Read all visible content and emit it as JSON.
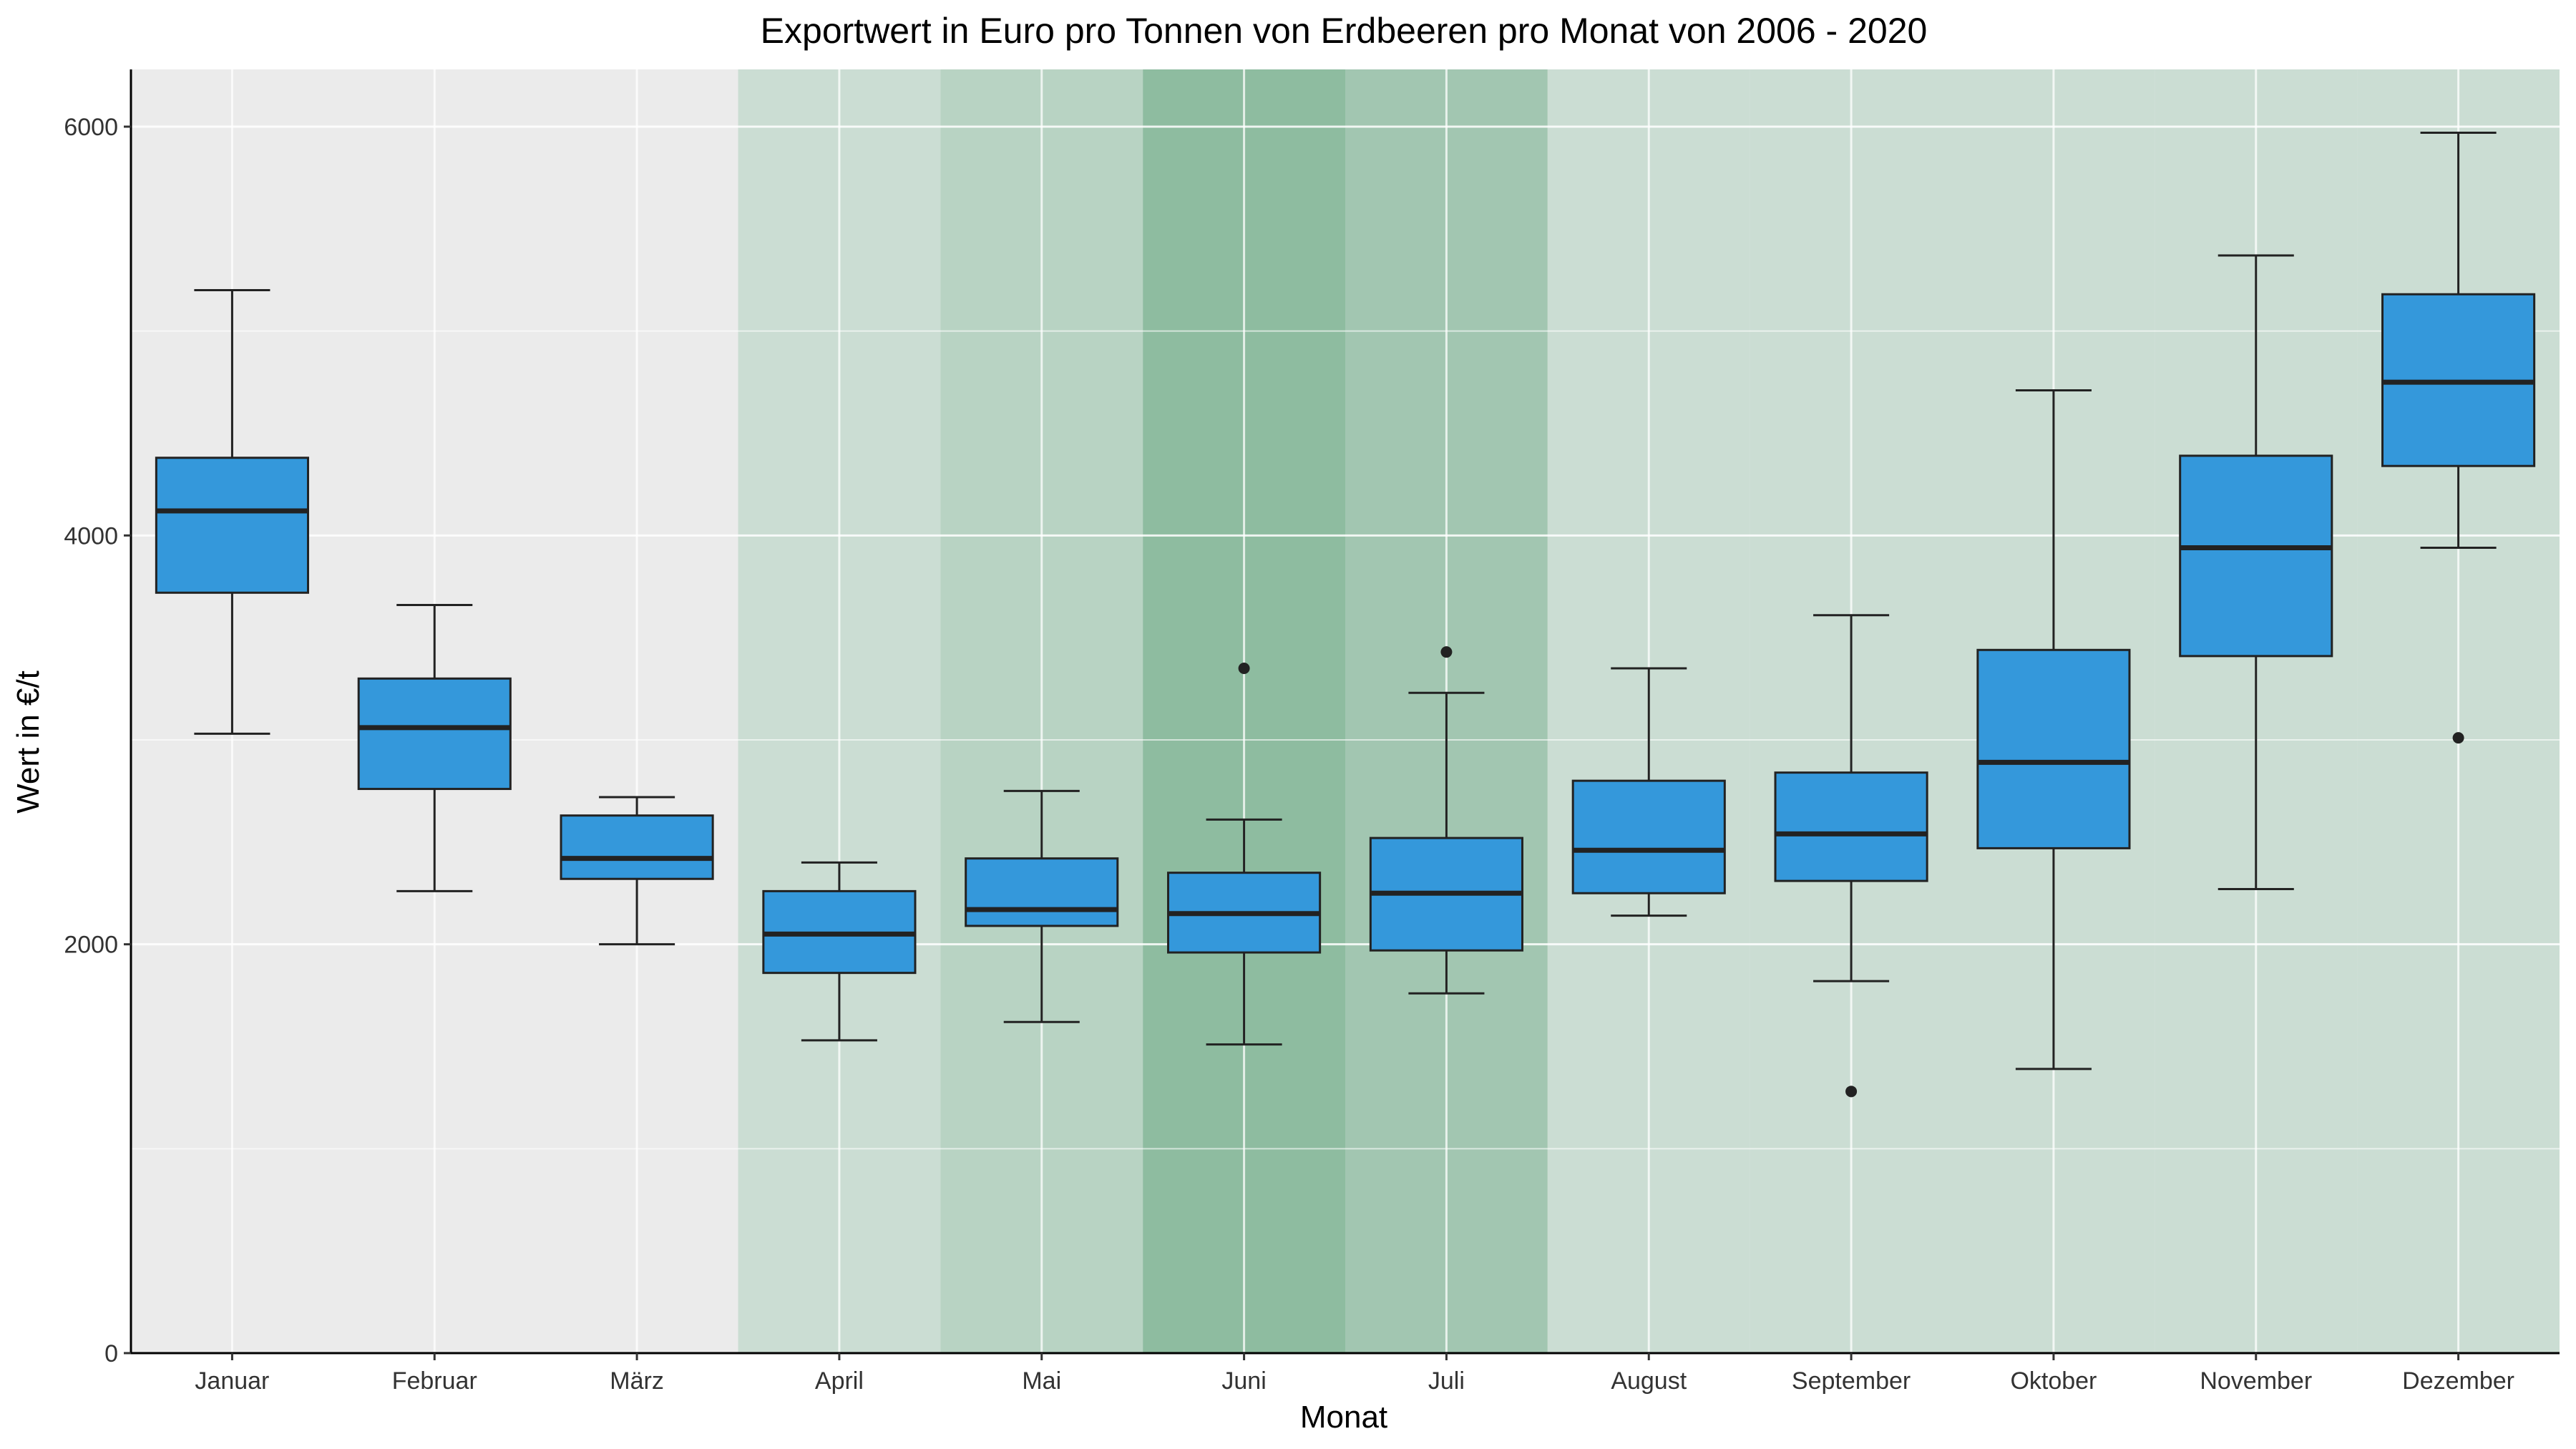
{
  "chart_data": {
    "type": "boxplot",
    "title": "Exportwert in Euro pro Tonnen von Erdbeeren pro Monat von 2006 - 2020",
    "xlabel": "Monat",
    "ylabel": "Wert in €/t",
    "ylim": [
      0,
      6280
    ],
    "yticks": [
      0,
      2000,
      4000,
      6000
    ],
    "categories": [
      "Januar",
      "Februar",
      "März",
      "April",
      "Mai",
      "Juni",
      "Juli",
      "August",
      "September",
      "Oktober",
      "November",
      "Dezember"
    ],
    "boxes": [
      {
        "category": "Januar",
        "whisker_low": 3030,
        "q1": 3720,
        "median": 4120,
        "q3": 4380,
        "whisker_high": 5200,
        "outliers": []
      },
      {
        "category": "Februar",
        "whisker_low": 2260,
        "q1": 2760,
        "median": 3060,
        "q3": 3300,
        "whisker_high": 3660,
        "outliers": []
      },
      {
        "category": "März",
        "whisker_low": 2000,
        "q1": 2320,
        "median": 2420,
        "q3": 2630,
        "whisker_high": 2720,
        "outliers": []
      },
      {
        "category": "April",
        "whisker_low": 1530,
        "q1": 1860,
        "median": 2050,
        "q3": 2260,
        "whisker_high": 2400,
        "outliers": []
      },
      {
        "category": "Mai",
        "whisker_low": 1620,
        "q1": 2090,
        "median": 2170,
        "q3": 2420,
        "whisker_high": 2750,
        "outliers": []
      },
      {
        "category": "Juni",
        "whisker_low": 1510,
        "q1": 1960,
        "median": 2150,
        "q3": 2350,
        "whisker_high": 2610,
        "outliers": [
          3350
        ]
      },
      {
        "category": "Juli",
        "whisker_low": 1760,
        "q1": 1970,
        "median": 2250,
        "q3": 2520,
        "whisker_high": 3230,
        "outliers": [
          3430
        ]
      },
      {
        "category": "August",
        "whisker_low": 2140,
        "q1": 2250,
        "median": 2460,
        "q3": 2800,
        "whisker_high": 3350,
        "outliers": []
      },
      {
        "category": "September",
        "whisker_low": 1820,
        "q1": 2310,
        "median": 2540,
        "q3": 2840,
        "whisker_high": 3610,
        "outliers": [
          1280
        ]
      },
      {
        "category": "Oktober",
        "whisker_low": 1390,
        "q1": 2470,
        "median": 2890,
        "q3": 3440,
        "whisker_high": 4710,
        "outliers": []
      },
      {
        "category": "November",
        "whisker_low": 2270,
        "q1": 3410,
        "median": 3940,
        "q3": 4390,
        "whisker_high": 5370,
        "outliers": []
      },
      {
        "category": "Dezember",
        "whisker_low": 3940,
        "q1": 4340,
        "median": 4750,
        "q3": 5180,
        "whisker_high": 5970,
        "outliers": [
          3010
        ]
      }
    ],
    "season_shading": [
      {
        "category": "April",
        "color": "#cbddd3"
      },
      {
        "category": "Mai",
        "color": "#b8d3c3"
      },
      {
        "category": "Juni",
        "color": "#8ebca0"
      },
      {
        "category": "Juli",
        "color": "#a2c6b1"
      },
      {
        "category": "August",
        "color": "#cbddd3"
      },
      {
        "category": "September",
        "color": "#cbddd3"
      },
      {
        "category": "Oktober",
        "color": "#cbddd3"
      },
      {
        "category": "November",
        "color": "#cbddd3"
      },
      {
        "category": "Dezember",
        "color": "#cbddd3"
      }
    ],
    "colors": {
      "box_fill": "#3498db",
      "box_line": "#222222",
      "panel_background": "#ebebeb",
      "grid": "#ffffff"
    },
    "grid": true,
    "legend": "none"
  }
}
